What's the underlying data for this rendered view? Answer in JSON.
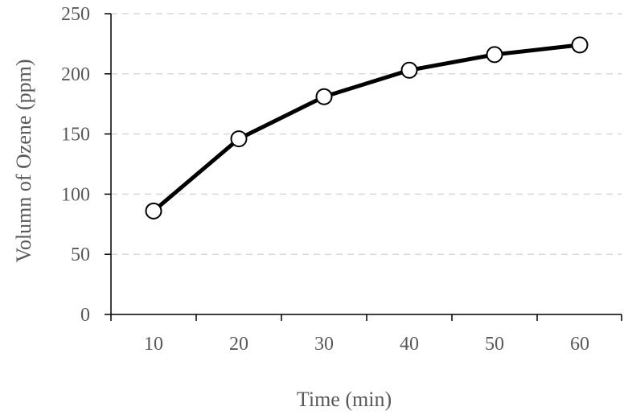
{
  "chart_data": {
    "type": "line",
    "x": [
      10,
      20,
      30,
      40,
      50,
      60
    ],
    "series": [
      {
        "values": [
          86,
          146,
          181,
          203,
          216,
          224
        ]
      }
    ],
    "xlabel": "Time (min)",
    "ylabel": "Volumn of Ozene (ppm)",
    "xticks": [
      "10",
      "20",
      "30",
      "40",
      "50",
      "60"
    ],
    "yticks": [
      "0",
      "50",
      "100",
      "150",
      "200",
      "250"
    ],
    "ylim": [
      0,
      250
    ],
    "grid": "horizontal dashed",
    "legend": "none",
    "colors": {
      "line": "#000000",
      "marker_fill": "#ffffff",
      "marker_stroke": "#000000",
      "grid": "#d9d9d9",
      "axis": "#000000",
      "text": "#595959"
    }
  }
}
